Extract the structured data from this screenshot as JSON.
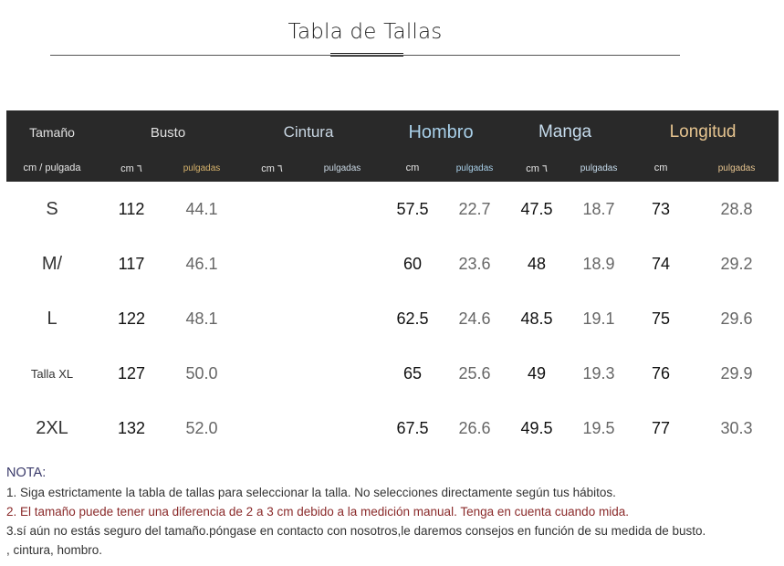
{
  "title": "Tabla de Tallas",
  "header": {
    "size": "Tamaño",
    "unit": "cm / pulgada",
    "groups": [
      {
        "label": "Busto",
        "color": "#e0e0e0",
        "cm": "cm ٦",
        "inch": "pulgadas"
      },
      {
        "label": "Cintura",
        "color": "#c9d7e3",
        "cm": "cm ٦",
        "inch": "pulgadas"
      },
      {
        "label": "Hombro",
        "color": "#a8cfe8",
        "cm": "cm",
        "inch": "pulgadas"
      },
      {
        "label": "Manga",
        "color": "#c6dced",
        "cm": "cm ٦",
        "inch": "pulgadas"
      },
      {
        "label": "Longitud",
        "color": "#e6c48f",
        "cm": "cm",
        "inch": "pulgadas"
      }
    ]
  },
  "rows": [
    {
      "size": "S",
      "busto_cm": "112",
      "busto_in": "44.1",
      "cintura_cm": "",
      "cintura_in": "",
      "hombro_cm": "57.5",
      "hombro_in": "22.7",
      "manga_cm": "47.5",
      "manga_in": "18.7",
      "longitud_cm": "73",
      "longitud_in": "28.8"
    },
    {
      "size": "M/",
      "busto_cm": "117",
      "busto_in": "46.1",
      "cintura_cm": "",
      "cintura_in": "",
      "hombro_cm": "60",
      "hombro_in": "23.6",
      "manga_cm": "48",
      "manga_in": "18.9",
      "longitud_cm": "74",
      "longitud_in": "29.2"
    },
    {
      "size": "L",
      "busto_cm": "122",
      "busto_in": "48.1",
      "cintura_cm": "",
      "cintura_in": "",
      "hombro_cm": "62.5",
      "hombro_in": "24.6",
      "manga_cm": "48.5",
      "manga_in": "19.1",
      "longitud_cm": "75",
      "longitud_in": "29.6"
    },
    {
      "size": "Talla XL",
      "busto_cm": "127",
      "busto_in": "50.0",
      "cintura_cm": "",
      "cintura_in": "",
      "hombro_cm": "65",
      "hombro_in": "25.6",
      "manga_cm": "49",
      "manga_in": "19.3",
      "longitud_cm": "76",
      "longitud_in": "29.9"
    },
    {
      "size": "2XL",
      "busto_cm": "132",
      "busto_in": "52.0",
      "cintura_cm": "",
      "cintura_in": "",
      "hombro_cm": "67.5",
      "hombro_in": "26.6",
      "manga_cm": "49.5",
      "manga_in": "19.5",
      "longitud_cm": "77",
      "longitud_in": "30.3"
    }
  ],
  "notes": {
    "head": "NOTA:",
    "line1": "1. Siga estrictamente la tabla de tallas para seleccionar la talla. No selecciones directamente según tus hábitos.",
    "line2": "2. El tamaño puede tener una diferencia de 2 a 3 cm debido a la medición manual. Tenga en cuenta cuando mida.",
    "line3": "3.sí aún no estás seguro del tamaño.póngase en contacto con nosotros,le daremos consejos en función de su medida de busto.",
    "line4": ", cintura, hombro."
  }
}
